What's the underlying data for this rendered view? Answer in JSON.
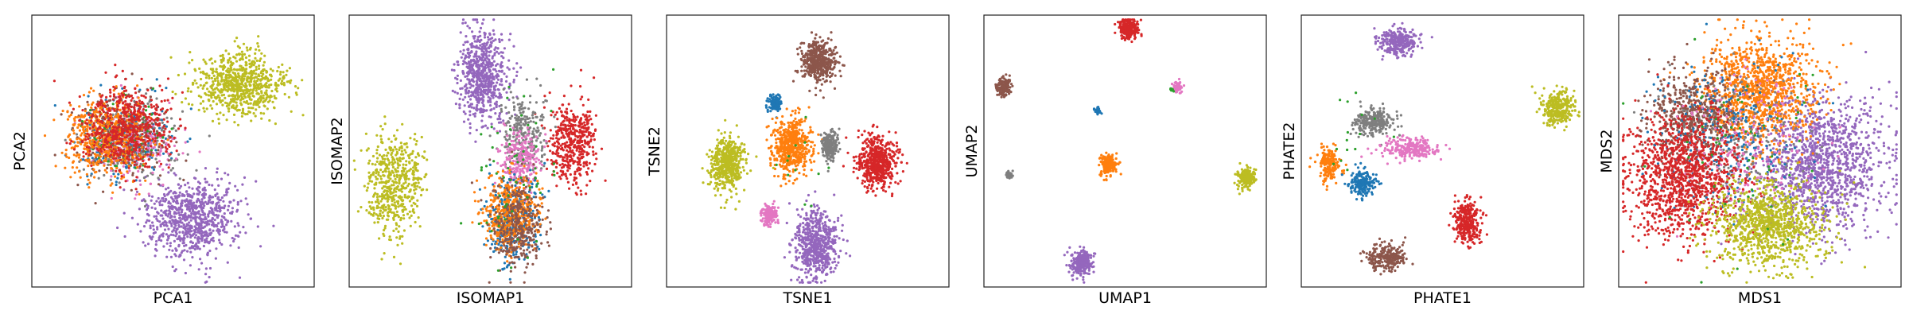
{
  "chart_data": [
    {
      "type": "scatter",
      "title": "",
      "xlabel": "PCA1",
      "ylabel": "PCA2",
      "grid": false,
      "ticks": false,
      "xlim": [
        0,
        10
      ],
      "ylim": [
        0,
        10
      ],
      "series": [
        {
          "color": "#bcbd22",
          "clusters": [
            {
              "cx": 7.4,
              "cy": 7.5,
              "sx": 0.8,
              "sy": 0.6,
              "n": 750
            }
          ]
        },
        {
          "color": "#9467bd",
          "clusters": [
            {
              "cx": 5.7,
              "cy": 2.5,
              "sx": 0.85,
              "sy": 0.75,
              "n": 800
            }
          ]
        },
        {
          "color": "#1f77b4",
          "clusters": [
            {
              "cx": 3.2,
              "cy": 5.5,
              "sx": 0.9,
              "sy": 0.75,
              "n": 250
            }
          ]
        },
        {
          "color": "#7f7f7f",
          "clusters": [
            {
              "cx": 3.4,
              "cy": 5.4,
              "sx": 0.9,
              "sy": 0.75,
              "n": 250
            }
          ]
        },
        {
          "color": "#e377c2",
          "clusters": [
            {
              "cx": 3.5,
              "cy": 5.3,
              "sx": 0.8,
              "sy": 0.7,
              "n": 200
            }
          ]
        },
        {
          "color": "#2ca02c",
          "clusters": [
            {
              "cx": 3.3,
              "cy": 5.5,
              "sx": 0.7,
              "sy": 0.65,
              "n": 100
            }
          ]
        },
        {
          "color": "#8c564b",
          "clusters": [
            {
              "cx": 3.1,
              "cy": 5.6,
              "sx": 0.85,
              "sy": 0.75,
              "n": 250
            }
          ]
        },
        {
          "color": "#ff7f0e",
          "clusters": [
            {
              "cx": 2.6,
              "cy": 5.5,
              "sx": 0.75,
              "sy": 0.75,
              "n": 500
            }
          ]
        },
        {
          "color": "#d62728",
          "clusters": [
            {
              "cx": 3.3,
              "cy": 5.9,
              "sx": 0.8,
              "sy": 0.75,
              "n": 550
            }
          ]
        }
      ]
    },
    {
      "type": "scatter",
      "title": "",
      "xlabel": "ISOMAP1",
      "ylabel": "ISOMAP2",
      "grid": false,
      "ticks": false,
      "xlim": [
        0,
        10
      ],
      "ylim": [
        0,
        10
      ],
      "series": [
        {
          "color": "#9467bd",
          "clusters": [
            {
              "cx": 4.7,
              "cy": 7.8,
              "sx": 0.45,
              "sy": 0.85,
              "n": 650
            }
          ]
        },
        {
          "color": "#bcbd22",
          "clusters": [
            {
              "cx": 1.2,
              "cy": 3.6,
              "sx": 0.35,
              "sy": 1.0,
              "n": 300
            },
            {
              "cx": 1.8,
              "cy": 3.9,
              "sx": 0.25,
              "sy": 0.9,
              "n": 150
            },
            {
              "cx": 2.3,
              "cy": 4.2,
              "sx": 0.2,
              "sy": 0.7,
              "n": 80
            }
          ]
        },
        {
          "color": "#d62728",
          "clusters": [
            {
              "cx": 7.8,
              "cy": 5.3,
              "sx": 0.35,
              "sy": 0.8,
              "n": 300
            },
            {
              "cx": 8.4,
              "cy": 5.4,
              "sx": 0.2,
              "sy": 0.7,
              "n": 150
            }
          ]
        },
        {
          "color": "#7f7f7f",
          "clusters": [
            {
              "cx": 6.2,
              "cy": 5.6,
              "sx": 0.4,
              "sy": 0.8,
              "n": 250
            }
          ]
        },
        {
          "color": "#e377c2",
          "clusters": [
            {
              "cx": 6.1,
              "cy": 4.7,
              "sx": 0.35,
              "sy": 0.5,
              "n": 250
            }
          ]
        },
        {
          "color": "#1f77b4",
          "clusters": [
            {
              "cx": 5.8,
              "cy": 2.4,
              "sx": 0.5,
              "sy": 0.8,
              "n": 300
            }
          ]
        },
        {
          "color": "#ff7f0e",
          "clusters": [
            {
              "cx": 5.8,
              "cy": 2.7,
              "sx": 0.5,
              "sy": 0.7,
              "n": 450
            }
          ]
        },
        {
          "color": "#8c564b",
          "clusters": [
            {
              "cx": 6.0,
              "cy": 2.3,
              "sx": 0.45,
              "sy": 0.8,
              "n": 350
            }
          ]
        },
        {
          "color": "#2ca02c",
          "clusters": [
            {
              "cx": 5.9,
              "cy": 4.0,
              "sx": 0.8,
              "sy": 1.4,
              "n": 60
            }
          ]
        }
      ]
    },
    {
      "type": "scatter",
      "title": "",
      "xlabel": "TSNE1",
      "ylabel": "TSNE2",
      "grid": false,
      "ticks": false,
      "xlim": [
        0,
        10
      ],
      "ylim": [
        0,
        10
      ],
      "series": [
        {
          "color": "#8c564b",
          "clusters": [
            {
              "cx": 5.4,
              "cy": 8.4,
              "sx": 0.3,
              "sy": 0.4,
              "n": 450
            }
          ]
        },
        {
          "color": "#1f77b4",
          "clusters": [
            {
              "cx": 3.8,
              "cy": 6.8,
              "sx": 0.12,
              "sy": 0.15,
              "n": 120
            }
          ]
        },
        {
          "color": "#ff7f0e",
          "clusters": [
            {
              "cx": 4.4,
              "cy": 5.2,
              "sx": 0.35,
              "sy": 0.55,
              "n": 550
            }
          ]
        },
        {
          "color": "#7f7f7f",
          "clusters": [
            {
              "cx": 5.8,
              "cy": 5.2,
              "sx": 0.15,
              "sy": 0.25,
              "n": 200
            }
          ]
        },
        {
          "color": "#d62728",
          "clusters": [
            {
              "cx": 7.5,
              "cy": 4.6,
              "sx": 0.35,
              "sy": 0.5,
              "n": 550
            }
          ]
        },
        {
          "color": "#bcbd22",
          "clusters": [
            {
              "cx": 2.1,
              "cy": 4.5,
              "sx": 0.3,
              "sy": 0.5,
              "n": 500
            }
          ]
        },
        {
          "color": "#e377c2",
          "clusters": [
            {
              "cx": 3.6,
              "cy": 2.6,
              "sx": 0.15,
              "sy": 0.2,
              "n": 150
            }
          ]
        },
        {
          "color": "#9467bd",
          "clusters": [
            {
              "cx": 5.3,
              "cy": 1.5,
              "sx": 0.4,
              "sy": 0.65,
              "n": 600
            }
          ]
        },
        {
          "color": "#2ca02c",
          "clusters": [
            {
              "cx": 5.0,
              "cy": 4.3,
              "sx": 0.6,
              "sy": 0.8,
              "n": 12
            }
          ]
        }
      ]
    },
    {
      "type": "scatter",
      "title": "",
      "xlabel": "UMAP1",
      "ylabel": "UMAP2",
      "grid": false,
      "ticks": false,
      "xlim": [
        0,
        10
      ],
      "ylim": [
        0,
        10
      ],
      "series": [
        {
          "color": "#d62728",
          "clusters": [
            {
              "cx": 5.1,
              "cy": 9.6,
              "sx": 0.18,
              "sy": 0.2,
              "n": 250
            }
          ]
        },
        {
          "color": "#8c564b",
          "clusters": [
            {
              "cx": 0.6,
              "cy": 7.4,
              "sx": 0.13,
              "sy": 0.18,
              "n": 150
            }
          ]
        },
        {
          "color": "#e377c2",
          "clusters": [
            {
              "cx": 6.9,
              "cy": 7.4,
              "sx": 0.08,
              "sy": 0.1,
              "n": 70
            }
          ]
        },
        {
          "color": "#2ca02c",
          "clusters": [
            {
              "cx": 6.7,
              "cy": 7.3,
              "sx": 0.05,
              "sy": 0.05,
              "n": 10
            }
          ]
        },
        {
          "color": "#1f77b4",
          "clusters": [
            {
              "cx": 4.0,
              "cy": 6.5,
              "sx": 0.05,
              "sy": 0.07,
              "n": 30
            }
          ]
        },
        {
          "color": "#ff7f0e",
          "clusters": [
            {
              "cx": 4.4,
              "cy": 4.5,
              "sx": 0.15,
              "sy": 0.2,
              "n": 200
            }
          ]
        },
        {
          "color": "#7f7f7f",
          "clusters": [
            {
              "cx": 0.8,
              "cy": 4.1,
              "sx": 0.06,
              "sy": 0.08,
              "n": 40
            }
          ]
        },
        {
          "color": "#bcbd22",
          "clusters": [
            {
              "cx": 9.4,
              "cy": 4.0,
              "sx": 0.15,
              "sy": 0.18,
              "n": 200
            }
          ]
        },
        {
          "color": "#9467bd",
          "clusters": [
            {
              "cx": 3.4,
              "cy": 0.8,
              "sx": 0.2,
              "sy": 0.25,
              "n": 250
            }
          ]
        }
      ]
    },
    {
      "type": "scatter",
      "title": "",
      "xlabel": "PHATE1",
      "ylabel": "PHATE2",
      "grid": false,
      "ticks": false,
      "xlim": [
        0,
        10
      ],
      "ylim": [
        0,
        10
      ],
      "series": [
        {
          "color": "#9467bd",
          "clusters": [
            {
              "cx": 3.4,
              "cy": 9.1,
              "sx": 0.35,
              "sy": 0.25,
              "n": 300
            }
          ]
        },
        {
          "color": "#bcbd22",
          "clusters": [
            {
              "cx": 9.2,
              "cy": 6.6,
              "sx": 0.3,
              "sy": 0.3,
              "n": 300
            }
          ]
        },
        {
          "color": "#7f7f7f",
          "clusters": [
            {
              "cx": 2.5,
              "cy": 6.1,
              "sx": 0.35,
              "sy": 0.25,
              "n": 250
            }
          ]
        },
        {
          "color": "#e377c2",
          "clusters": [
            {
              "cx": 3.9,
              "cy": 5.1,
              "sx": 0.5,
              "sy": 0.2,
              "n": 250
            }
          ]
        },
        {
          "color": "#ff7f0e",
          "clusters": [
            {
              "cx": 0.9,
              "cy": 4.5,
              "sx": 0.18,
              "sy": 0.3,
              "n": 200
            }
          ]
        },
        {
          "color": "#1f77b4",
          "clusters": [
            {
              "cx": 2.1,
              "cy": 3.8,
              "sx": 0.25,
              "sy": 0.25,
              "n": 200
            }
          ]
        },
        {
          "color": "#d62728",
          "clusters": [
            {
              "cx": 5.9,
              "cy": 2.3,
              "sx": 0.25,
              "sy": 0.4,
              "n": 300
            }
          ]
        },
        {
          "color": "#8c564b",
          "clusters": [
            {
              "cx": 3.0,
              "cy": 1.0,
              "sx": 0.35,
              "sy": 0.25,
              "n": 250
            }
          ]
        },
        {
          "color": "#2ca02c",
          "clusters": [
            {
              "cx": 1.8,
              "cy": 5.5,
              "sx": 0.5,
              "sy": 0.8,
              "n": 15
            }
          ]
        }
      ]
    },
    {
      "type": "scatter",
      "title": "",
      "xlabel": "MDS1",
      "ylabel": "MDS2",
      "grid": false,
      "ticks": false,
      "xlim": [
        0,
        10
      ],
      "ylim": [
        0,
        10
      ],
      "series": [
        {
          "color": "#9467bd",
          "clusters": [
            {
              "cx": 7.2,
              "cy": 4.5,
              "sx": 1.2,
              "sy": 1.3,
              "n": 1300
            }
          ]
        },
        {
          "color": "#ff7f0e",
          "clusters": [
            {
              "cx": 5.0,
              "cy": 7.3,
              "sx": 1.0,
              "sy": 1.0,
              "n": 1100
            }
          ]
        },
        {
          "color": "#8c564b",
          "clusters": [
            {
              "cx": 2.6,
              "cy": 6.3,
              "sx": 0.8,
              "sy": 0.9,
              "n": 600
            }
          ]
        },
        {
          "color": "#7f7f7f",
          "clusters": [
            {
              "cx": 4.3,
              "cy": 5.3,
              "sx": 1.2,
              "sy": 1.2,
              "n": 200
            }
          ]
        },
        {
          "color": "#1f77b4",
          "clusters": [
            {
              "cx": 3.8,
              "cy": 5.5,
              "sx": 1.4,
              "sy": 1.4,
              "n": 250
            }
          ]
        },
        {
          "color": "#e377c2",
          "clusters": [
            {
              "cx": 4.5,
              "cy": 5.0,
              "sx": 1.4,
              "sy": 1.4,
              "n": 200
            }
          ]
        },
        {
          "color": "#d62728",
          "clusters": [
            {
              "cx": 2.2,
              "cy": 4.0,
              "sx": 1.0,
              "sy": 1.2,
              "n": 1200
            }
          ]
        },
        {
          "color": "#bcbd22",
          "clusters": [
            {
              "cx": 5.3,
              "cy": 2.2,
              "sx": 1.0,
              "sy": 0.8,
              "n": 1000
            }
          ]
        },
        {
          "color": "#2ca02c",
          "clusters": [
            {
              "cx": 4.5,
              "cy": 5.0,
              "sx": 1.8,
              "sy": 1.8,
              "n": 60
            }
          ]
        }
      ]
    }
  ]
}
